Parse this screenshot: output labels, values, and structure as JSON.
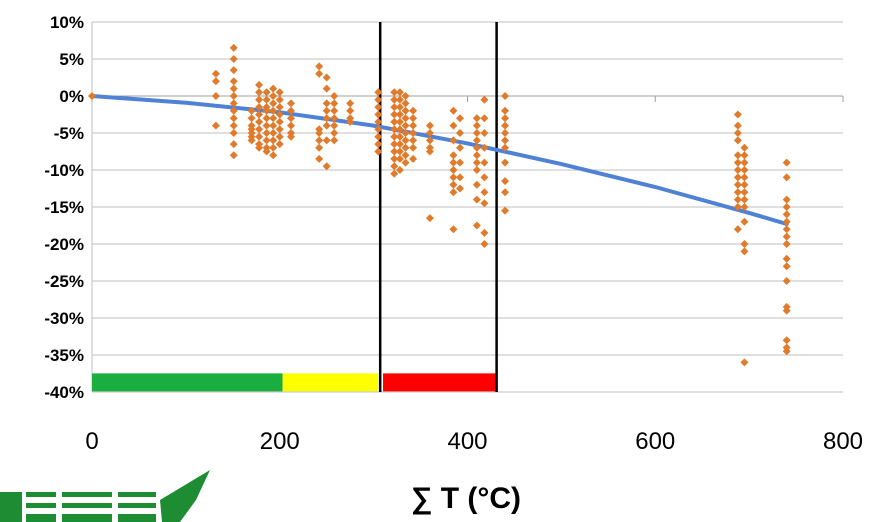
{
  "chart_data": {
    "type": "scatter",
    "title": "",
    "xlabel": "∑ T  (°C)",
    "ylabel": "",
    "xlim": [
      0,
      800
    ],
    "ylim": [
      -0.4,
      0.1
    ],
    "x_ticks": [
      "0",
      "200",
      "400",
      "600",
      "800"
    ],
    "y_ticks": [
      "10%",
      "5%",
      "0%",
      "-5%",
      "-10%",
      "-15%",
      "-20%",
      "-25%",
      "-30%",
      "-35%",
      "-40%"
    ],
    "grid": "horizontal",
    "colors": {
      "points": "#E07B2C",
      "trend": "#4F81D4",
      "vline": "#000000",
      "band_green": "#1AAD3F",
      "band_yellow": "#FFFF00",
      "band_red": "#FF0000",
      "logo": "#1E8C33"
    },
    "series": [
      {
        "type": "scatter",
        "columns": [
          {
            "x": 0,
            "y": [
              0.0
            ]
          },
          {
            "x": 132,
            "y": [
              0.03,
              0.02,
              0.0,
              -0.04
            ]
          },
          {
            "x": 151,
            "y": [
              0.065,
              0.05,
              0.035,
              0.02,
              0.01,
              0.0,
              -0.01,
              -0.02,
              -0.03,
              -0.04,
              -0.05,
              -0.065,
              -0.08
            ]
          },
          {
            "x": 170,
            "y": [
              -0.02,
              -0.03,
              -0.04,
              -0.045,
              -0.05,
              -0.055,
              -0.06
            ]
          },
          {
            "x": 178,
            "y": [
              0.015,
              0.005,
              -0.005,
              -0.015,
              -0.025,
              -0.035,
              -0.045,
              -0.055,
              -0.065,
              -0.07
            ]
          },
          {
            "x": 186,
            "y": [
              0.005,
              -0.005,
              -0.015,
              -0.02,
              -0.03,
              -0.04,
              -0.05,
              -0.06,
              -0.07,
              -0.075
            ]
          },
          {
            "x": 193,
            "y": [
              0.01,
              0.0,
              -0.01,
              -0.02,
              -0.03,
              -0.04,
              -0.05,
              -0.06,
              -0.07,
              -0.08
            ]
          },
          {
            "x": 200,
            "y": [
              0.005,
              -0.005,
              -0.015,
              -0.025,
              -0.035,
              -0.045,
              -0.055,
              -0.065
            ]
          },
          {
            "x": 212,
            "y": [
              -0.01,
              -0.02,
              -0.03,
              -0.04,
              -0.05,
              -0.055
            ]
          },
          {
            "x": 242,
            "y": [
              0.04,
              0.03,
              -0.045,
              -0.05,
              -0.06,
              -0.07,
              -0.085
            ]
          },
          {
            "x": 250,
            "y": [
              0.025,
              0.01,
              -0.01,
              -0.02,
              -0.03,
              -0.04,
              -0.06,
              -0.095
            ]
          },
          {
            "x": 258,
            "y": [
              0.0,
              -0.01,
              -0.02,
              -0.03,
              -0.04,
              -0.05,
              -0.06
            ]
          },
          {
            "x": 275,
            "y": [
              -0.01,
              -0.02,
              -0.03,
              -0.035
            ]
          },
          {
            "x": 305,
            "y": [
              0.005,
              -0.005,
              -0.015,
              -0.025,
              -0.035,
              -0.045,
              -0.055,
              -0.065,
              -0.075
            ]
          },
          {
            "x": 322,
            "y": [
              0.005,
              -0.005,
              -0.015,
              -0.025,
              -0.035,
              -0.045,
              -0.055,
              -0.065,
              -0.075,
              -0.085,
              -0.095,
              -0.105
            ]
          },
          {
            "x": 328,
            "y": [
              0.005,
              -0.005,
              -0.015,
              -0.025,
              -0.035,
              -0.045,
              -0.055,
              -0.065,
              -0.075,
              -0.085,
              -0.1
            ]
          },
          {
            "x": 334,
            "y": [
              0.0,
              -0.01,
              -0.02,
              -0.03,
              -0.04,
              -0.05,
              -0.06,
              -0.07,
              -0.08,
              -0.09
            ]
          },
          {
            "x": 342,
            "y": [
              -0.02,
              -0.03,
              -0.04,
              -0.05,
              -0.06,
              -0.07,
              -0.085
            ]
          },
          {
            "x": 360,
            "y": [
              -0.04,
              -0.05,
              -0.06,
              -0.07,
              -0.075,
              -0.165
            ]
          },
          {
            "x": 385,
            "y": [
              -0.02,
              -0.04,
              -0.06,
              -0.08,
              -0.09,
              -0.1,
              -0.11,
              -0.12,
              -0.13,
              -0.18
            ]
          },
          {
            "x": 392,
            "y": [
              -0.03,
              -0.05,
              -0.07,
              -0.09,
              -0.11,
              -0.125
            ]
          },
          {
            "x": 410,
            "y": [
              -0.03,
              -0.04,
              -0.05,
              -0.06,
              -0.07,
              -0.08,
              -0.09,
              -0.1,
              -0.12,
              -0.14,
              -0.175
            ]
          },
          {
            "x": 418,
            "y": [
              -0.005,
              -0.03,
              -0.05,
              -0.07,
              -0.09,
              -0.11,
              -0.13,
              -0.145,
              -0.185,
              -0.2
            ]
          },
          {
            "x": 440,
            "y": [
              0.0,
              -0.02,
              -0.03,
              -0.04,
              -0.05,
              -0.06,
              -0.07,
              -0.09,
              -0.115,
              -0.13,
              -0.155
            ]
          },
          {
            "x": 688,
            "y": [
              -0.025,
              -0.04,
              -0.05,
              -0.06,
              -0.08,
              -0.09,
              -0.1,
              -0.11,
              -0.12,
              -0.13,
              -0.14,
              -0.15,
              -0.18
            ]
          },
          {
            "x": 695,
            "y": [
              -0.07,
              -0.08,
              -0.09,
              -0.1,
              -0.11,
              -0.12,
              -0.13,
              -0.14,
              -0.15,
              -0.17,
              -0.2,
              -0.21,
              -0.36
            ]
          },
          {
            "x": 740,
            "y": [
              -0.09,
              -0.11,
              -0.14,
              -0.15,
              -0.16,
              -0.17,
              -0.18,
              -0.19,
              -0.2,
              -0.22,
              -0.23,
              -0.25,
              -0.285,
              -0.29,
              -0.33,
              -0.34,
              -0.345
            ]
          }
        ]
      },
      {
        "type": "line",
        "x": [
          0,
          100,
          200,
          300,
          400,
          500,
          600,
          700,
          740
        ],
        "y": [
          0.0,
          -0.009,
          -0.022,
          -0.04,
          -0.064,
          -0.092,
          -0.123,
          -0.158,
          -0.173
        ]
      }
    ],
    "vertical_lines": [
      307,
      431
    ],
    "bands": [
      {
        "color": "green",
        "x": [
          0,
          203
        ],
        "y": -0.387
      },
      {
        "color": "yellow",
        "x": [
          203,
          305
        ],
        "y": -0.387
      },
      {
        "color": "red",
        "x": [
          310,
          431
        ],
        "y": -0.387
      }
    ]
  }
}
